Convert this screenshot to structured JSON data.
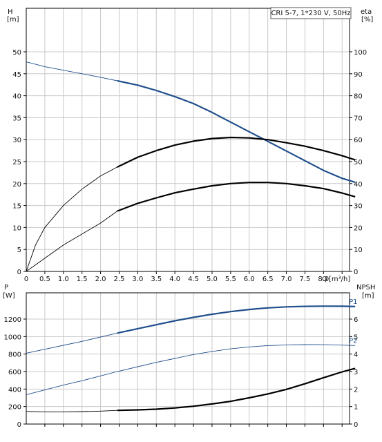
{
  "chart_data": [
    {
      "type": "line",
      "title": "CRI 5-7, 1*230 V, 50Hz",
      "y_label_left": "H",
      "y_unit_left": "[m]",
      "y_label_right": "eta",
      "y_unit_right": "[%]",
      "x_label": "Q",
      "x_unit": "[m³/h]",
      "xlim": [
        0,
        8.7
      ],
      "ylim_left": [
        0,
        52
      ],
      "ylim_right": [
        0,
        104
      ],
      "x_ticks": [
        "0",
        "0.5",
        "1.0",
        "1.5",
        "2.0",
        "2.5",
        "3.0",
        "3.5",
        "4.0",
        "4.5",
        "5.0",
        "5.5",
        "6.0",
        "6.5",
        "7.0",
        "7.5",
        "8.0"
      ],
      "y_ticks_left": [
        "0",
        "5",
        "10",
        "15",
        "20",
        "25",
        "30",
        "35",
        "40",
        "45",
        "50"
      ],
      "y_ticks_right": [
        "0",
        "10",
        "20",
        "30",
        "40",
        "50",
        "60",
        "70",
        "80",
        "90",
        "100"
      ],
      "grid": true,
      "series": [
        {
          "axis": "left",
          "color": "#1f4e8c",
          "bold_from": 2.45,
          "x": [
            0,
            0.5,
            1.0,
            1.5,
            2.0,
            2.45,
            3.0,
            3.5,
            4.0,
            4.5,
            5.0,
            5.5,
            6.0,
            6.5,
            7.0,
            7.5,
            8.0,
            8.5,
            8.85
          ],
          "y": [
            47.7,
            46.6,
            45.8,
            45.0,
            44.2,
            43.4,
            42.4,
            41.2,
            39.8,
            38.2,
            36.2,
            34.0,
            31.8,
            29.6,
            27.4,
            25.2,
            23.0,
            21.2,
            20.3
          ]
        },
        {
          "axis": "right",
          "color": "#000000",
          "bold_from": 2.45,
          "x": [
            0,
            0.25,
            0.5,
            1.0,
            1.5,
            2.0,
            2.45,
            3.0,
            3.5,
            4.0,
            4.5,
            5.0,
            5.5,
            6.0,
            6.5,
            7.0,
            7.5,
            8.0,
            8.5,
            8.85
          ],
          "y": [
            0,
            12,
            20,
            30,
            37.5,
            43.5,
            47.5,
            52,
            55,
            57.5,
            59.3,
            60.5,
            61,
            60.8,
            60,
            58.6,
            57,
            55,
            52.7,
            50.8
          ]
        },
        {
          "axis": "right",
          "color": "#000000",
          "bold_from": 2.45,
          "x": [
            0,
            0.5,
            1.0,
            1.5,
            2.0,
            2.45,
            3.0,
            3.5,
            4.0,
            4.5,
            5.0,
            5.5,
            6.0,
            6.5,
            7.0,
            7.5,
            8.0,
            8.5,
            8.85
          ],
          "y": [
            0,
            6,
            12,
            17,
            22,
            27.5,
            31,
            33.5,
            35.8,
            37.5,
            39,
            40,
            40.5,
            40.5,
            40,
            39,
            37.7,
            35.7,
            34
          ]
        }
      ]
    },
    {
      "type": "line",
      "y_label_left": "P",
      "y_unit_left": "[W]",
      "y_label_right": "NPSH",
      "y_unit_right": "[m]",
      "xlim": [
        0,
        8.7
      ],
      "ylim_left": [
        0,
        1400
      ],
      "ylim_right": [
        0,
        7
      ],
      "y_ticks_left": [
        "0",
        "200",
        "400",
        "600",
        "800",
        "1000",
        "1200"
      ],
      "y_ticks_right": [
        "0",
        "1",
        "2",
        "3",
        "4",
        "5",
        "6"
      ],
      "grid": true,
      "series": [
        {
          "name": "P1",
          "axis": "left",
          "color": "#1f4e8c",
          "bold_from": 2.45,
          "x": [
            0,
            0.5,
            1.0,
            1.5,
            2.0,
            2.45,
            3.0,
            3.5,
            4.0,
            4.5,
            5.0,
            5.5,
            6.0,
            6.5,
            7.0,
            7.5,
            8.0,
            8.5,
            8.85
          ],
          "y": [
            810,
            855,
            900,
            945,
            995,
            1040,
            1090,
            1135,
            1180,
            1220,
            1255,
            1285,
            1310,
            1328,
            1340,
            1345,
            1348,
            1347,
            1343
          ]
        },
        {
          "name": "P2",
          "axis": "left",
          "color": "#1f4e8c",
          "bold_from": 99,
          "x": [
            0,
            0.5,
            1.0,
            1.5,
            2.0,
            2.45,
            3.0,
            3.5,
            4.0,
            4.5,
            5.0,
            5.5,
            6.0,
            6.5,
            7.0,
            7.5,
            8.0,
            8.5,
            8.85
          ],
          "y": [
            335,
            390,
            445,
            495,
            550,
            600,
            655,
            705,
            750,
            795,
            830,
            860,
            882,
            897,
            905,
            908,
            907,
            902,
            898
          ]
        },
        {
          "axis": "right",
          "color": "#000000",
          "bold_from": 2.45,
          "x": [
            0,
            0.5,
            1.0,
            1.5,
            2.0,
            2.45,
            3.0,
            3.5,
            4.0,
            4.5,
            5.0,
            5.5,
            6.0,
            6.5,
            7.0,
            7.5,
            8.0,
            8.5,
            8.85
          ],
          "y": [
            0.72,
            0.7,
            0.7,
            0.71,
            0.74,
            0.78,
            0.81,
            0.85,
            0.92,
            1.02,
            1.15,
            1.3,
            1.5,
            1.72,
            1.98,
            2.3,
            2.65,
            2.98,
            3.18
          ]
        }
      ]
    }
  ]
}
